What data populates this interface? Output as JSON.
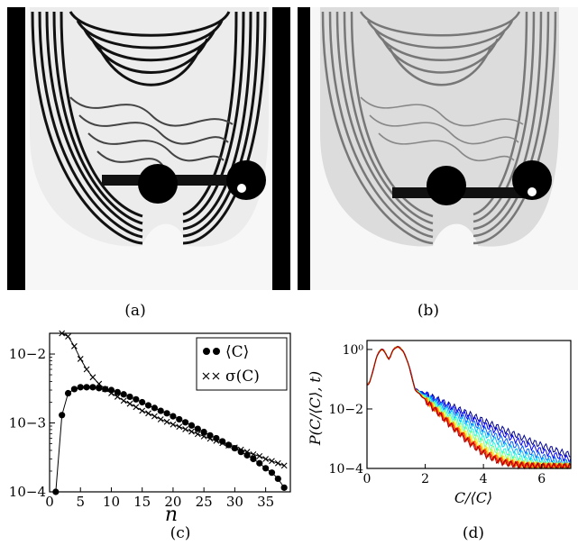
{
  "panels": {
    "a": {
      "caption": "(a)"
    },
    "b": {
      "caption": "(b)"
    },
    "c": {
      "caption": "(c)"
    },
    "d": {
      "caption": "(d)"
    }
  },
  "chart_data": [
    {
      "type": "scatter",
      "panel": "c",
      "xlabel": "n",
      "ylabel": "",
      "xlim": [
        0,
        39
      ],
      "ylim": [
        0.0001,
        0.02
      ],
      "yscale": "log",
      "xticks": [
        "0",
        "5",
        "10",
        "15",
        "20",
        "25",
        "30",
        "35"
      ],
      "yticks": [
        "10−4",
        "10−3",
        "10−2"
      ],
      "legend_position": "top-right",
      "series": [
        {
          "name": "⟨C⟩",
          "marker": "filled-circle",
          "x": [
            1,
            2,
            3,
            4,
            5,
            6,
            7,
            8,
            9,
            10,
            11,
            12,
            13,
            14,
            15,
            16,
            17,
            18,
            19,
            20,
            21,
            22,
            23,
            24,
            25,
            26,
            27,
            28,
            29,
            30,
            31,
            32,
            33,
            34,
            35,
            36,
            37,
            38
          ],
          "values": [
            0.0001,
            0.0013,
            0.0027,
            0.0031,
            0.0033,
            0.0033,
            0.0033,
            0.0032,
            0.0031,
            0.003,
            0.0028,
            0.0026,
            0.0024,
            0.0022,
            0.002,
            0.0018,
            0.00165,
            0.0015,
            0.00138,
            0.00125,
            0.00113,
            0.00102,
            0.00092,
            0.00082,
            0.00074,
            0.00066,
            0.0006,
            0.00054,
            0.00048,
            0.00043,
            0.00038,
            0.00034,
            0.0003,
            0.00026,
            0.00022,
            0.00019,
            0.000155,
            0.000115
          ]
        },
        {
          "name": "σ(C)",
          "marker": "cross",
          "x": [
            2,
            3,
            4,
            5,
            6,
            7,
            8,
            9,
            10,
            11,
            12,
            13,
            14,
            15,
            16,
            17,
            18,
            19,
            20,
            21,
            22,
            23,
            24,
            25,
            26,
            27,
            28,
            29,
            30,
            31,
            32,
            33,
            34,
            35,
            36,
            37,
            38
          ],
          "values": [
            0.02,
            0.018,
            0.013,
            0.0085,
            0.006,
            0.0046,
            0.0037,
            0.0031,
            0.0027,
            0.0024,
            0.0021,
            0.0019,
            0.0017,
            0.0015,
            0.00138,
            0.00125,
            0.00113,
            0.00104,
            0.00095,
            0.00088,
            0.00081,
            0.00075,
            0.00069,
            0.00064,
            0.00059,
            0.00055,
            0.00051,
            0.00047,
            0.00044,
            0.00041,
            0.00038,
            0.00035,
            0.00033,
            0.0003,
            0.00028,
            0.00026,
            0.00024
          ]
        }
      ]
    },
    {
      "type": "line",
      "panel": "d",
      "xlabel": "C/⟨C⟩",
      "ylabel": "P(C/⟨C⟩, t)",
      "xlim": [
        0,
        7
      ],
      "ylim": [
        0.0001,
        2
      ],
      "yscale": "log",
      "xticks": [
        "0",
        "2",
        "4",
        "6"
      ],
      "yticks": [
        "10−4",
        "10−2",
        "10⁰"
      ],
      "series_colors": [
        "#00008f",
        "#0000ff",
        "#0060ff",
        "#00c0ff",
        "#20ffdf",
        "#80ff80",
        "#dfff20",
        "#ffbf00",
        "#ff6000",
        "#ff0000",
        "#9f0000"
      ],
      "series_decay": [
        3.8,
        3.4,
        3.0,
        2.7,
        2.4,
        2.2,
        2.0,
        1.9,
        1.85,
        1.8,
        1.75
      ]
    }
  ]
}
